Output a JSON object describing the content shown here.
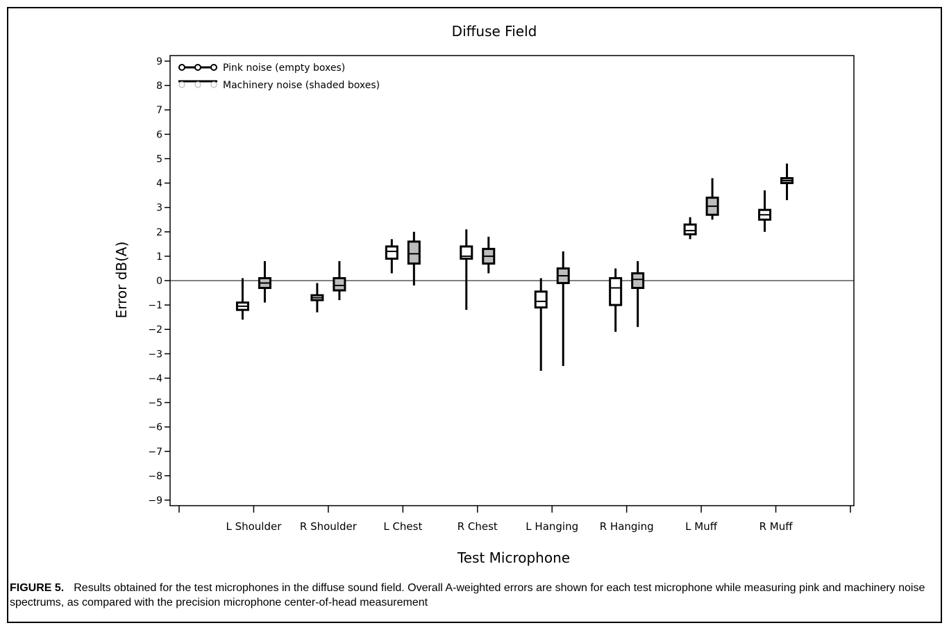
{
  "chart_data": {
    "type": "box",
    "title": "Diffuse Field",
    "xlabel": "Test Microphone",
    "ylabel": "Error dB(A)",
    "ylim": [
      -9,
      9
    ],
    "yticks": [
      9,
      8,
      7,
      6,
      5,
      4,
      3,
      2,
      1,
      0,
      -1,
      -2,
      -3,
      -4,
      -5,
      -6,
      -7,
      -8,
      -9
    ],
    "ytick_labels": [
      "9",
      "8",
      "7",
      "6",
      "5",
      "4",
      "3",
      "2",
      "1",
      "0",
      "−1",
      "−2",
      "−3",
      "−4",
      "−5",
      "−6",
      "−7",
      "−8",
      "−9"
    ],
    "reference_line": 0,
    "legend_position": "top-left",
    "categories": [
      "L Shoulder",
      "R Shoulder",
      "L Chest",
      "R Chest",
      "L Hanging",
      "R Hanging",
      "L Muff",
      "R Muff"
    ],
    "series": [
      {
        "name": "Pink noise (empty boxes)",
        "fill": "#ffffff",
        "boxes": [
          {
            "min": -1.6,
            "q1": -1.2,
            "median": -1.05,
            "q3": -0.9,
            "max": 0.1
          },
          {
            "min": -1.3,
            "q1": -0.8,
            "median": -0.7,
            "q3": -0.6,
            "max": -0.1
          },
          {
            "min": 0.3,
            "q1": 0.9,
            "median": 1.2,
            "q3": 1.4,
            "max": 1.7
          },
          {
            "min": -1.2,
            "q1": 0.9,
            "median": 1.0,
            "q3": 1.4,
            "max": 2.1
          },
          {
            "min": -3.7,
            "q1": -1.1,
            "median": -0.85,
            "q3": -0.45,
            "max": 0.1
          },
          {
            "min": -2.1,
            "q1": -1.0,
            "median": -0.3,
            "q3": 0.1,
            "max": 0.5
          },
          {
            "min": 1.7,
            "q1": 1.9,
            "median": 2.05,
            "q3": 2.3,
            "max": 2.6
          },
          {
            "min": 2.0,
            "q1": 2.5,
            "median": 2.7,
            "q3": 2.9,
            "max": 3.7
          }
        ]
      },
      {
        "name": "Machinery noise (shaded boxes)",
        "fill": "#bdbdbd",
        "boxes": [
          {
            "min": -0.9,
            "q1": -0.3,
            "median": -0.1,
            "q3": 0.1,
            "max": 0.8
          },
          {
            "min": -0.8,
            "q1": -0.4,
            "median": -0.2,
            "q3": 0.1,
            "max": 0.8
          },
          {
            "min": -0.2,
            "q1": 0.7,
            "median": 1.1,
            "q3": 1.6,
            "max": 2.0
          },
          {
            "min": 0.3,
            "q1": 0.7,
            "median": 1.0,
            "q3": 1.3,
            "max": 1.8
          },
          {
            "min": -3.5,
            "q1": -0.1,
            "median": 0.2,
            "q3": 0.5,
            "max": 1.2
          },
          {
            "min": -1.9,
            "q1": -0.3,
            "median": 0.05,
            "q3": 0.3,
            "max": 0.8
          },
          {
            "min": 2.5,
            "q1": 2.7,
            "median": 3.05,
            "q3": 3.4,
            "max": 4.2
          },
          {
            "min": 3.3,
            "q1": 4.0,
            "median": 4.1,
            "q3": 4.2,
            "max": 4.8
          }
        ]
      }
    ]
  },
  "caption": {
    "label": "FIGURE 5.",
    "text": "Results obtained for the test microphones in the diffuse sound field. Overall A-weighted errors are shown for each test microphone while measuring pink and machinery noise spectrums, as compared with the precision microphone center-of-head measurement"
  }
}
